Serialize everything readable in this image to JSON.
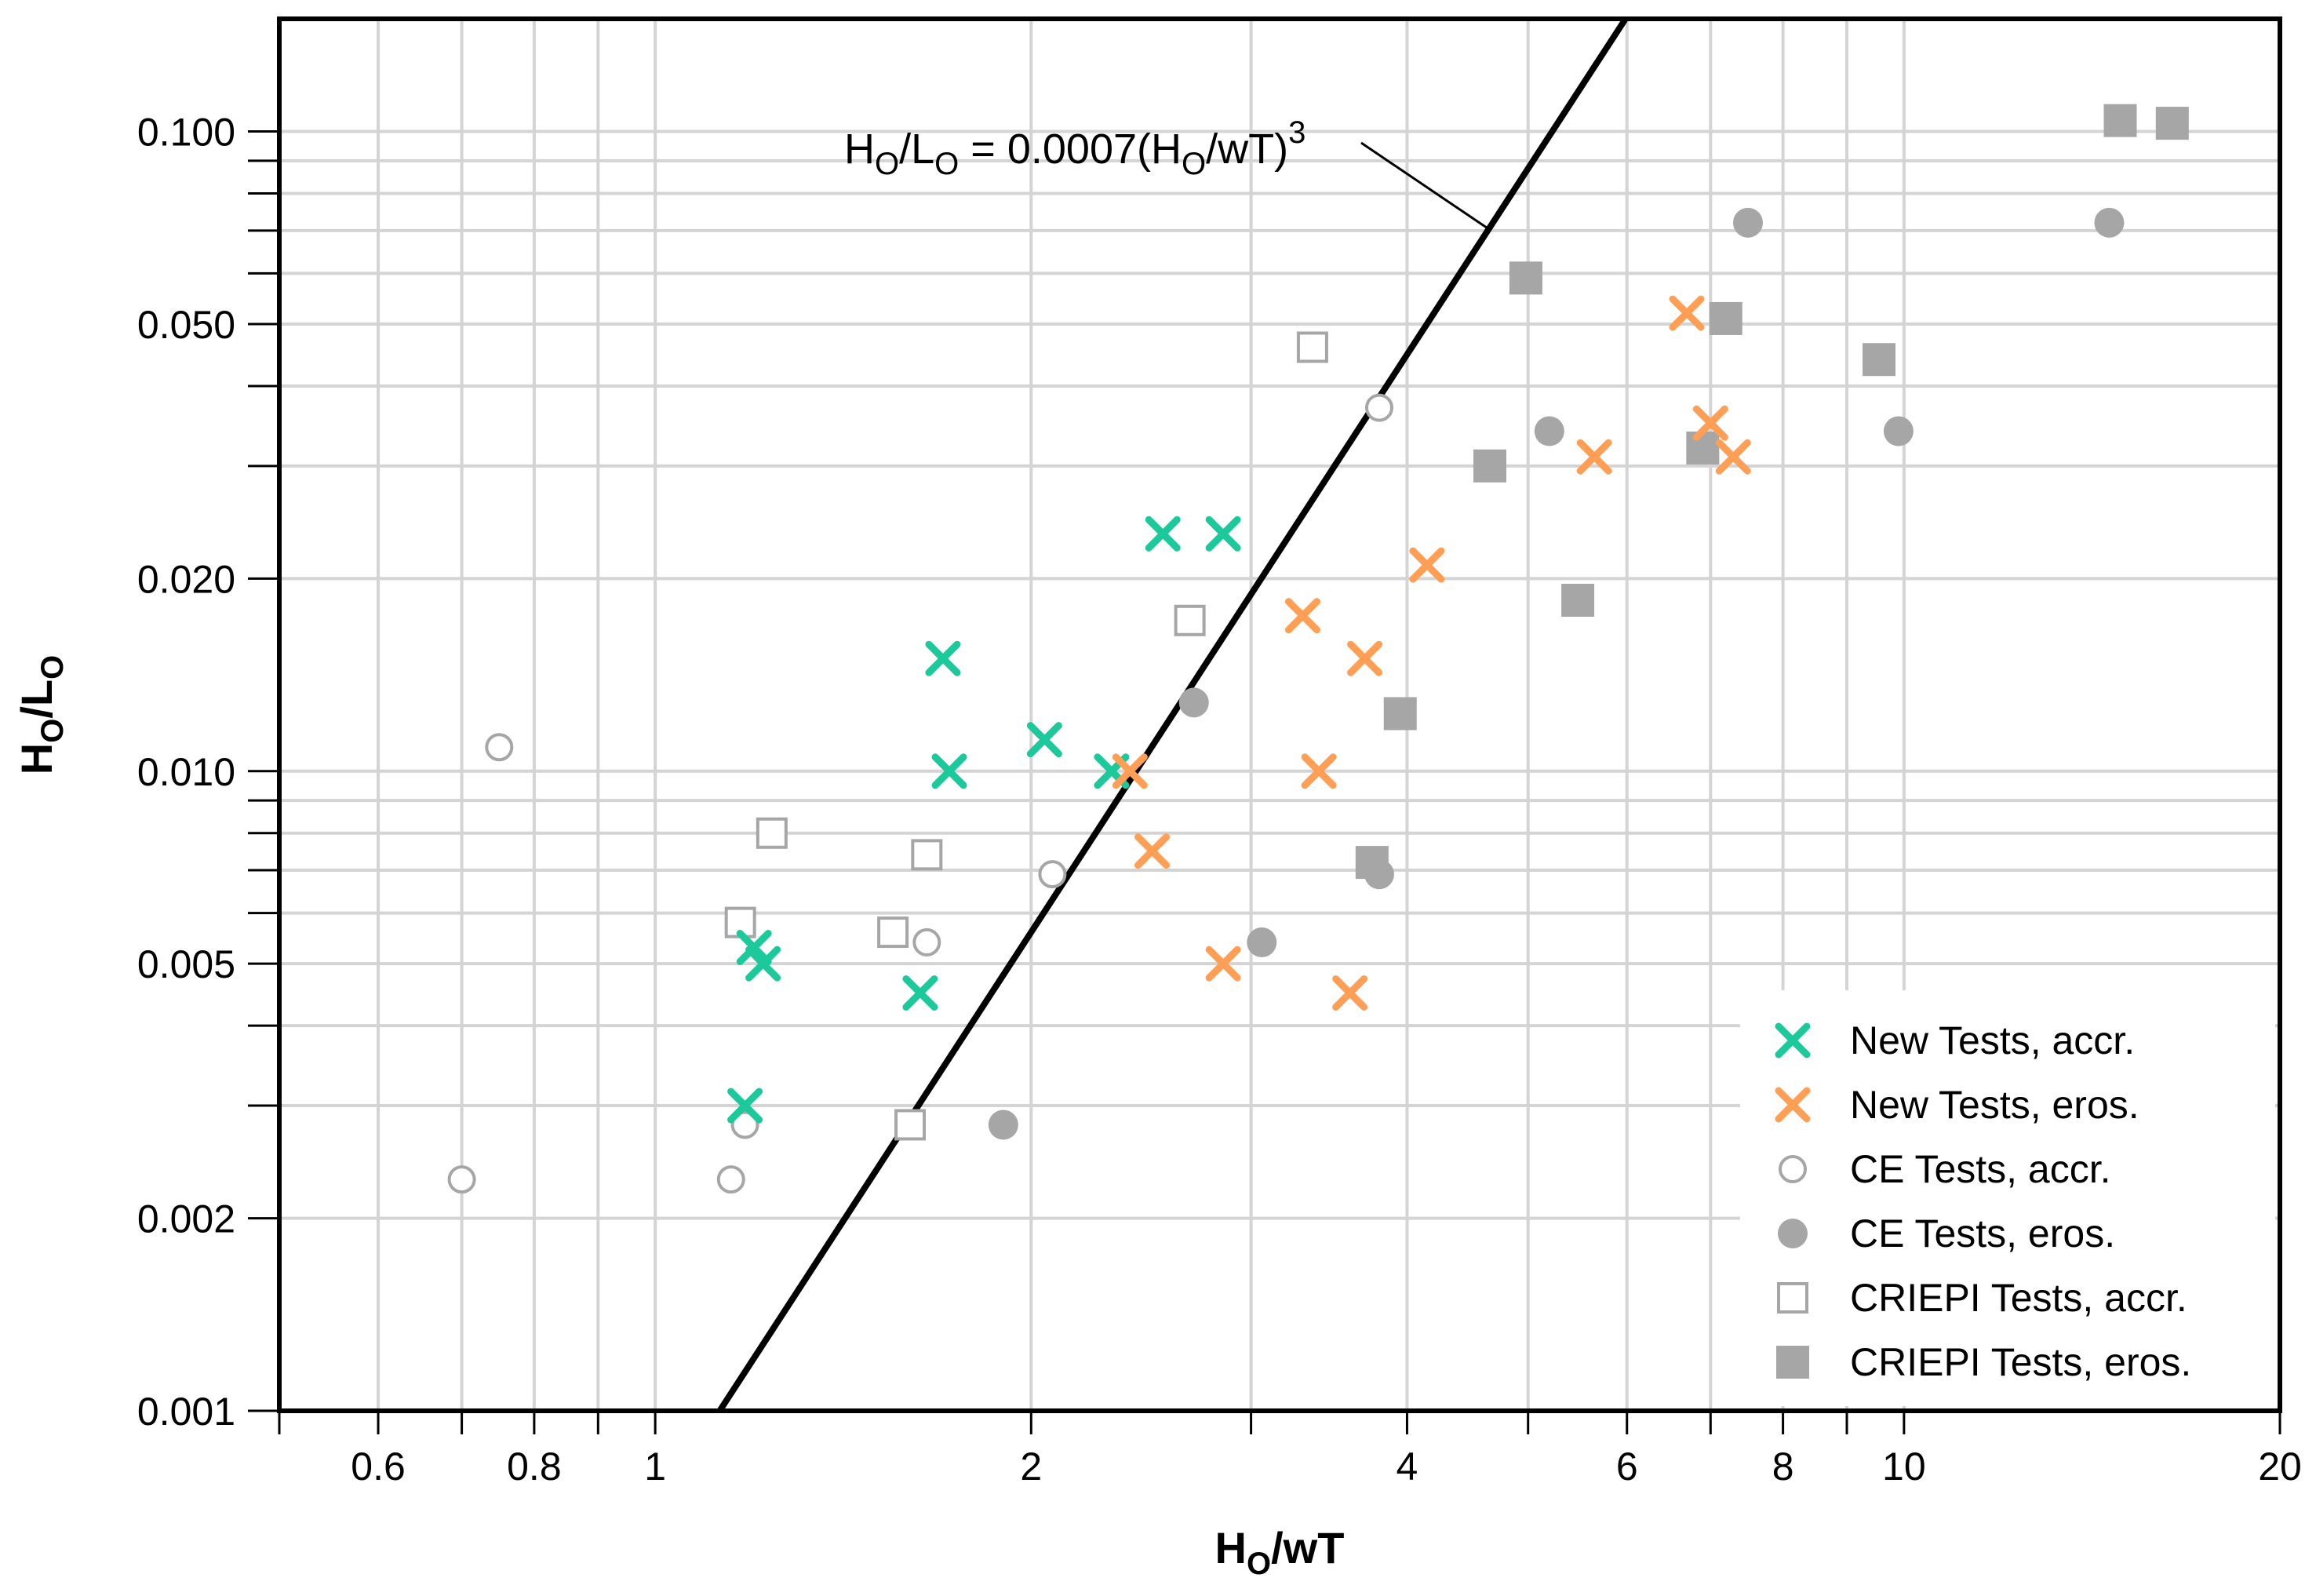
{
  "chart_data": {
    "type": "scatter",
    "title": "",
    "xlabel": "Ho/wT",
    "ylabel": "Ho/Lo",
    "xscale": "log",
    "yscale": "log",
    "xlim": [
      0.5,
      20
    ],
    "ylim": [
      0.001,
      0.15
    ],
    "grid": true,
    "legend_position": "bottom-right",
    "x_ticks": [
      {
        "value": 0.6,
        "label": "0.6"
      },
      {
        "value": 0.8,
        "label": "0.8"
      },
      {
        "value": 1,
        "label": "1"
      },
      {
        "value": 2,
        "label": "2"
      },
      {
        "value": 4,
        "label": "4"
      },
      {
        "value": 6,
        "label": "6"
      },
      {
        "value": 8,
        "label": "8"
      },
      {
        "value": 10,
        "label": "10"
      },
      {
        "value": 20,
        "label": "20"
      }
    ],
    "y_ticks": [
      {
        "value": 0.001,
        "label": "0.001"
      },
      {
        "value": 0.002,
        "label": "0.002"
      },
      {
        "value": 0.005,
        "label": "0.005"
      },
      {
        "value": 0.01,
        "label": "0.010"
      },
      {
        "value": 0.02,
        "label": "0.020"
      },
      {
        "value": 0.05,
        "label": "0.050"
      },
      {
        "value": 0.1,
        "label": "0.100"
      }
    ],
    "x_grid": [
      0.5,
      0.6,
      0.7,
      0.8,
      0.9,
      1,
      2,
      3,
      4,
      5,
      6,
      7,
      8,
      9,
      10,
      20
    ],
    "y_grid": [
      0.001,
      0.002,
      0.003,
      0.004,
      0.005,
      0.006,
      0.007,
      0.008,
      0.009,
      0.01,
      0.02,
      0.03,
      0.04,
      0.05,
      0.06,
      0.07,
      0.08,
      0.09,
      0.1
    ],
    "curve": {
      "name": "Ho/Lo = 0.0007(Ho/wT)^3",
      "coefficient": 0.0007,
      "exponent": 3,
      "annotation": {
        "base": "H",
        "sub1": "O",
        "mid": "/L",
        "sub2": "O",
        "tail": " = 0.0007(H",
        "sub3": "O",
        "end": "/wT)",
        "sup": "3"
      }
    },
    "series": [
      {
        "name": "New Tests, accr.",
        "marker": "x",
        "color": "#1cc99a",
        "points": [
          [
            1.7,
            0.015
          ],
          [
            1.72,
            0.01
          ],
          [
            2.05,
            0.0112
          ],
          [
            2.32,
            0.01
          ],
          [
            2.55,
            0.0235
          ],
          [
            2.85,
            0.0235
          ],
          [
            1.2,
            0.0053
          ],
          [
            1.22,
            0.005
          ],
          [
            1.63,
            0.0045
          ],
          [
            1.18,
            0.003
          ]
        ]
      },
      {
        "name": "New Tests, eros.",
        "marker": "x",
        "color": "#ff9f55",
        "points": [
          [
            2.4,
            0.01
          ],
          [
            2.5,
            0.0075
          ],
          [
            2.85,
            0.005
          ],
          [
            3.3,
            0.0175
          ],
          [
            3.4,
            0.01
          ],
          [
            3.7,
            0.015
          ],
          [
            3.6,
            0.0045
          ],
          [
            4.15,
            0.021
          ],
          [
            5.65,
            0.031
          ],
          [
            6.7,
            0.052
          ],
          [
            7.0,
            0.035
          ],
          [
            7.3,
            0.031
          ]
        ]
      },
      {
        "name": "CE Tests, accr.",
        "marker": "circle-open",
        "color": "#a6a6a6",
        "points": [
          [
            0.75,
            0.0109
          ],
          [
            0.7,
            0.0023
          ],
          [
            1.15,
            0.0023
          ],
          [
            1.18,
            0.0028
          ],
          [
            1.65,
            0.0054
          ],
          [
            2.08,
            0.0069
          ],
          [
            3.8,
            0.037
          ]
        ]
      },
      {
        "name": "CE Tests, eros.",
        "marker": "circle-filled",
        "color": "#a6a6a6",
        "points": [
          [
            1.9,
            0.0028
          ],
          [
            2.7,
            0.0128
          ],
          [
            3.06,
            0.0054
          ],
          [
            3.8,
            0.0069
          ],
          [
            5.2,
            0.034
          ],
          [
            7.5,
            0.072
          ],
          [
            9.9,
            0.034
          ],
          [
            14.6,
            0.072
          ]
        ]
      },
      {
        "name": "CRIEPI Tests, accr.",
        "marker": "square-open",
        "color": "#a6a6a6",
        "points": [
          [
            1.17,
            0.0058
          ],
          [
            1.24,
            0.008
          ],
          [
            1.55,
            0.0056
          ],
          [
            1.65,
            0.0074
          ],
          [
            1.6,
            0.0028
          ],
          [
            2.68,
            0.0172
          ],
          [
            3.36,
            0.046
          ]
        ]
      },
      {
        "name": "CRIEPI Tests, eros.",
        "marker": "square-filled",
        "color": "#a6a6a6",
        "points": [
          [
            3.75,
            0.0072
          ],
          [
            3.95,
            0.0123
          ],
          [
            4.66,
            0.03
          ],
          [
            4.98,
            0.059
          ],
          [
            5.48,
            0.0185
          ],
          [
            6.9,
            0.032
          ],
          [
            7.2,
            0.051
          ],
          [
            9.55,
            0.044
          ],
          [
            14.9,
            0.104
          ],
          [
            16.4,
            0.103
          ]
        ]
      }
    ]
  }
}
